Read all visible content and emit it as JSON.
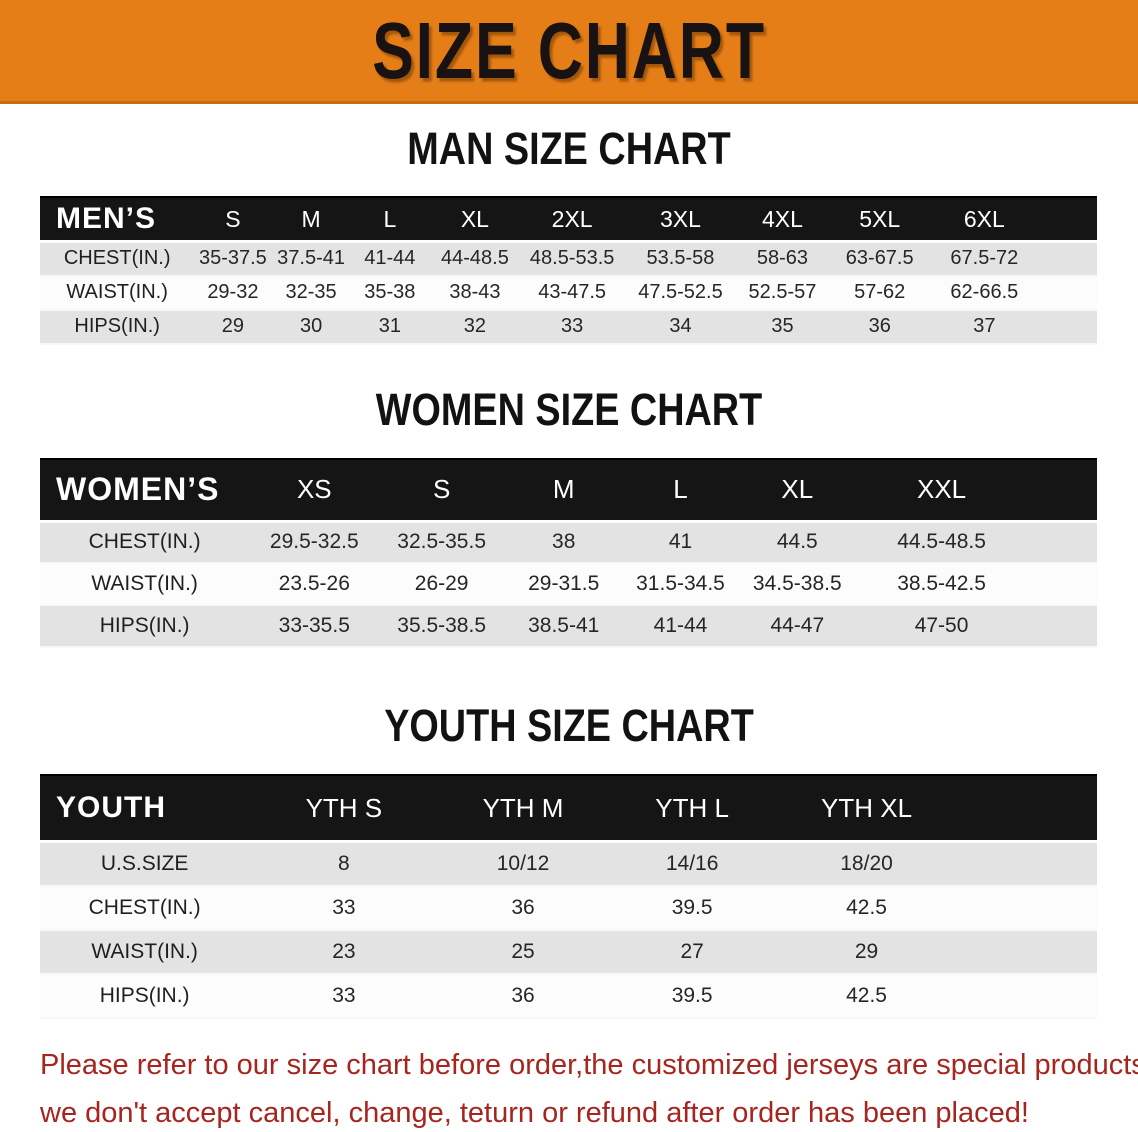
{
  "banner": {
    "title": "SIZE CHART"
  },
  "sections": [
    {
      "heading": "MAN SIZE CHART",
      "table": {
        "group_label": "MEN’S",
        "columns": [
          "S",
          "M",
          "L",
          "XL",
          "2XL",
          "3XL",
          "4XL",
          "5XL",
          "6XL"
        ],
        "rows": [
          {
            "label": "CHEST(IN.)",
            "values": [
              "35-37.5",
              "37.5-41",
              "41-44",
              "44-48.5",
              "48.5-53.5",
              "53.5-58",
              "58-63",
              "63-67.5",
              "67.5-72"
            ]
          },
          {
            "label": "WAIST(IN.)",
            "values": [
              "29-32",
              "32-35",
              "35-38",
              "38-43",
              "43-47.5",
              "47.5-52.5",
              "52.5-57",
              "57-62",
              "62-66.5"
            ]
          },
          {
            "label": "HIPS(IN.)",
            "values": [
              "29",
              "30",
              "31",
              "32",
              "33",
              "34",
              "35",
              "36",
              "37"
            ]
          }
        ]
      }
    },
    {
      "heading": "WOMEN SIZE CHART",
      "table": {
        "group_label": "WOMEN’S",
        "columns": [
          "XS",
          "S",
          "M",
          "L",
          "XL",
          "XXL"
        ],
        "rows": [
          {
            "label": "CHEST(IN.)",
            "values": [
              "29.5-32.5",
              "32.5-35.5",
              "38",
              "41",
              "44.5",
              "44.5-48.5"
            ]
          },
          {
            "label": "WAIST(IN.)",
            "values": [
              "23.5-26",
              "26-29",
              "29-31.5",
              "31.5-34.5",
              "34.5-38.5",
              "38.5-42.5"
            ]
          },
          {
            "label": "HIPS(IN.)",
            "values": [
              "33-35.5",
              "35.5-38.5",
              "38.5-41",
              "41-44",
              "44-47",
              "47-50"
            ]
          }
        ]
      }
    },
    {
      "heading": "YOUTH SIZE CHART",
      "table": {
        "group_label": "YOUTH",
        "columns": [
          "YTH S",
          "YTH M",
          "YTH L",
          "YTH XL"
        ],
        "rows": [
          {
            "label": "U.S.SIZE",
            "values": [
              "8",
              "10/12",
              "14/16",
              "18/20"
            ]
          },
          {
            "label": "CHEST(IN.)",
            "values": [
              "33",
              "36",
              "39.5",
              "42.5"
            ]
          },
          {
            "label": "WAIST(IN.)",
            "values": [
              "23",
              "25",
              "27",
              "29"
            ]
          },
          {
            "label": "HIPS(IN.)",
            "values": [
              "33",
              "36",
              "39.5",
              "42.5"
            ]
          }
        ]
      }
    }
  ],
  "footer": {
    "line1": "Please refer to our size chart before order,the customized jerseys are special products,",
    "line2": "we don't accept cancel, change, teturn or refund after order has been placed!"
  },
  "colors": {
    "banner_orange": "#E67E17",
    "table_header_black": "#161515",
    "row_shade_gray": "#E3E3E3",
    "notice_red": "#A6251F"
  }
}
